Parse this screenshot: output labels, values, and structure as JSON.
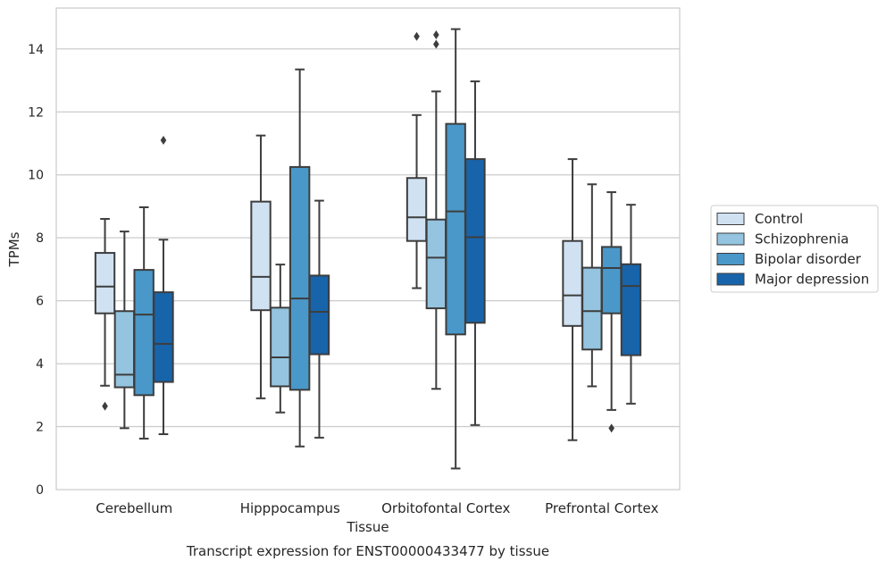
{
  "chart_data": {
    "type": "box",
    "title": "",
    "caption": "Transcript expression for ENST00000433477 by tissue",
    "xlabel": "Tissue",
    "ylabel": "TPMs",
    "ylim": [
      0,
      15.3
    ],
    "yticks": [
      0,
      2,
      4,
      6,
      8,
      10,
      12,
      14
    ],
    "grid": "horizontal",
    "legend_position": "right-center",
    "categories": [
      "Cerebellum",
      "Hipppocampus",
      "Orbitofontal Cortex",
      "Prefrontal Cortex"
    ],
    "series": [
      {
        "name": "Control",
        "color": "#d0e1f2",
        "boxes": [
          {
            "whislo": 3.3,
            "q1": 5.6,
            "med": 6.45,
            "q3": 7.52,
            "whishi": 8.6,
            "fliers": [
              2.65
            ]
          },
          {
            "whislo": 2.9,
            "q1": 5.7,
            "med": 6.76,
            "q3": 9.15,
            "whishi": 11.25,
            "fliers": []
          },
          {
            "whislo": 6.4,
            "q1": 7.9,
            "med": 8.65,
            "q3": 9.9,
            "whishi": 11.9,
            "fliers": [
              14.4
            ]
          },
          {
            "whislo": 1.57,
            "q1": 5.2,
            "med": 6.17,
            "q3": 7.9,
            "whishi": 10.5,
            "fliers": []
          }
        ]
      },
      {
        "name": "Schizophrenia",
        "color": "#94c4df",
        "boxes": [
          {
            "whislo": 1.95,
            "q1": 3.25,
            "med": 3.65,
            "q3": 5.67,
            "whishi": 8.2,
            "fliers": []
          },
          {
            "whislo": 2.45,
            "q1": 3.28,
            "med": 4.2,
            "q3": 5.78,
            "whishi": 7.15,
            "fliers": []
          },
          {
            "whislo": 3.2,
            "q1": 5.76,
            "med": 7.37,
            "q3": 8.58,
            "whishi": 12.65,
            "fliers": [
              14.15,
              14.45
            ]
          },
          {
            "whislo": 3.28,
            "q1": 4.45,
            "med": 5.67,
            "q3": 7.05,
            "whishi": 9.7,
            "fliers": []
          }
        ]
      },
      {
        "name": "Bipolar disorder",
        "color": "#4a98c9",
        "boxes": [
          {
            "whislo": 1.62,
            "q1": 3.0,
            "med": 5.56,
            "q3": 6.98,
            "whishi": 8.97,
            "fliers": []
          },
          {
            "whislo": 1.37,
            "q1": 3.17,
            "med": 6.07,
            "q3": 10.25,
            "whishi": 13.35,
            "fliers": []
          },
          {
            "whislo": 0.67,
            "q1": 4.93,
            "med": 8.84,
            "q3": 11.62,
            "whishi": 14.63,
            "fliers": []
          },
          {
            "whislo": 2.53,
            "q1": 5.6,
            "med": 7.04,
            "q3": 7.71,
            "whishi": 9.45,
            "fliers": [
              1.95
            ]
          }
        ]
      },
      {
        "name": "Major depression",
        "color": "#1764ab",
        "boxes": [
          {
            "whislo": 1.76,
            "q1": 3.42,
            "med": 4.63,
            "q3": 6.27,
            "whishi": 7.94,
            "fliers": [
              11.1
            ]
          },
          {
            "whislo": 1.65,
            "q1": 4.3,
            "med": 5.65,
            "q3": 6.8,
            "whishi": 9.18,
            "fliers": []
          },
          {
            "whislo": 2.05,
            "q1": 5.3,
            "med": 8.02,
            "q3": 10.5,
            "whishi": 12.97,
            "fliers": []
          },
          {
            "whislo": 2.73,
            "q1": 4.27,
            "med": 6.47,
            "q3": 7.16,
            "whishi": 9.05,
            "fliers": []
          }
        ]
      }
    ]
  }
}
